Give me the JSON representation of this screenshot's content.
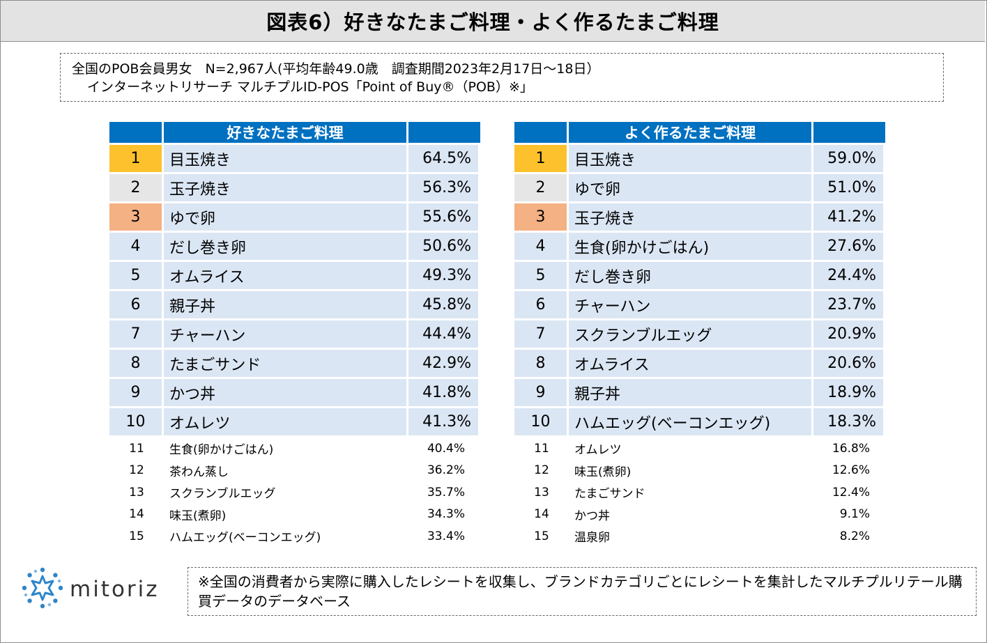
{
  "header": {
    "title": "図表6）好きなたまご料理・よく作るたまご料理"
  },
  "survey": {
    "line1": "全国のPOB会員男女　N=2,967人(平均年齢49.0歳　調査期間2023年2月17日～18日）",
    "line2": "インターネットリサーチ マルチプルID-POS「Point of Buy®（POB）※」"
  },
  "left_table": {
    "header": "好きなたまご料理",
    "top": [
      {
        "rank": "1",
        "name": "目玉焼き",
        "pct": "64.5%"
      },
      {
        "rank": "2",
        "name": "玉子焼き",
        "pct": "56.3%"
      },
      {
        "rank": "3",
        "name": "ゆで卵",
        "pct": "55.6%"
      },
      {
        "rank": "4",
        "name": "だし巻き卵",
        "pct": "50.6%"
      },
      {
        "rank": "5",
        "name": "オムライス",
        "pct": "49.3%"
      },
      {
        "rank": "6",
        "name": "親子丼",
        "pct": "45.8%"
      },
      {
        "rank": "7",
        "name": "チャーハン",
        "pct": "44.4%"
      },
      {
        "rank": "8",
        "name": "たまごサンド",
        "pct": "42.9%"
      },
      {
        "rank": "9",
        "name": "かつ丼",
        "pct": "41.8%"
      },
      {
        "rank": "10",
        "name": "オムレツ",
        "pct": "41.3%"
      }
    ],
    "rest": [
      {
        "rank": "11",
        "name": "生食(卵かけごはん)",
        "pct": "40.4%"
      },
      {
        "rank": "12",
        "name": "茶わん蒸し",
        "pct": "36.2%"
      },
      {
        "rank": "13",
        "name": "スクランブルエッグ",
        "pct": "35.7%"
      },
      {
        "rank": "14",
        "name": "味玉(煮卵)",
        "pct": "34.3%"
      },
      {
        "rank": "15",
        "name": "ハムエッグ(ベーコンエッグ)",
        "pct": "33.4%"
      }
    ]
  },
  "right_table": {
    "header": "よく作るたまご料理",
    "top": [
      {
        "rank": "1",
        "name": "目玉焼き",
        "pct": "59.0%"
      },
      {
        "rank": "2",
        "name": "ゆで卵",
        "pct": "51.0%"
      },
      {
        "rank": "3",
        "name": "玉子焼き",
        "pct": "41.2%"
      },
      {
        "rank": "4",
        "name": "生食(卵かけごはん)",
        "pct": "27.6%"
      },
      {
        "rank": "5",
        "name": "だし巻き卵",
        "pct": "24.4%"
      },
      {
        "rank": "6",
        "name": "チャーハン",
        "pct": "23.7%"
      },
      {
        "rank": "7",
        "name": "スクランブルエッグ",
        "pct": "20.9%"
      },
      {
        "rank": "8",
        "name": "オムライス",
        "pct": "20.6%"
      },
      {
        "rank": "9",
        "name": "親子丼",
        "pct": "18.9%"
      },
      {
        "rank": "10",
        "name": "ハムエッグ(ベーコンエッグ)",
        "pct": "18.3%"
      }
    ],
    "rest": [
      {
        "rank": "11",
        "name": "オムレツ",
        "pct": "16.8%"
      },
      {
        "rank": "12",
        "name": "味玉(煮卵)",
        "pct": "12.6%"
      },
      {
        "rank": "13",
        "name": "たまごサンド",
        "pct": "12.4%"
      },
      {
        "rank": "14",
        "name": "かつ丼",
        "pct": "9.1%"
      },
      {
        "rank": "15",
        "name": "温泉卵",
        "pct": "8.2%"
      }
    ]
  },
  "footer": {
    "logo_text": "mitoriz",
    "logo_icon": "sun-burst-icon",
    "note": "※全国の消費者から実際に購入したレシートを収集し、ブランドカテゴリごとにレシートを集計したマルチプルリテール購買データのデータベース"
  },
  "colors": {
    "header_blue": "#0070c0",
    "row_blue": "#dbe6f4",
    "gold": "#fcc12d",
    "silver": "#e6e6e6",
    "bronze": "#f4b183",
    "logo_blue": "#2e86c8"
  }
}
